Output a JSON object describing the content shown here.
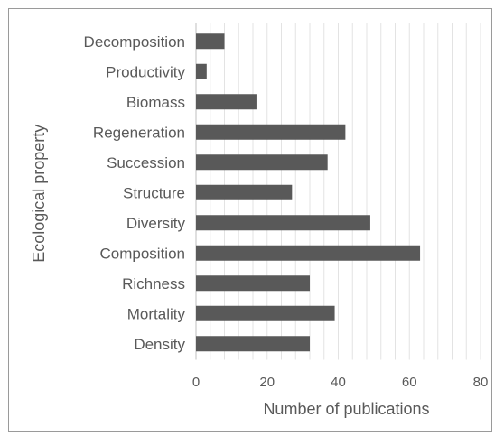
{
  "chart_data": {
    "type": "bar",
    "orientation": "horizontal",
    "title": "",
    "xlabel": "Number of publications",
    "ylabel": "Ecological property",
    "categories": [
      "Decomposition",
      "Productivity",
      "Biomass",
      "Regeneration",
      "Succession",
      "Structure",
      "Diversity",
      "Composition",
      "Richness",
      "Mortality",
      "Density"
    ],
    "values": [
      8,
      3,
      17,
      42,
      37,
      27,
      49,
      63,
      32,
      39,
      32
    ],
    "xlim": [
      0,
      80
    ],
    "xticks": [
      "0",
      "20",
      "40",
      "60",
      "80"
    ],
    "minor_gridlines": true,
    "legend": "none",
    "bar_color": "#595959",
    "gridline_color": "#e3e3e3"
  }
}
